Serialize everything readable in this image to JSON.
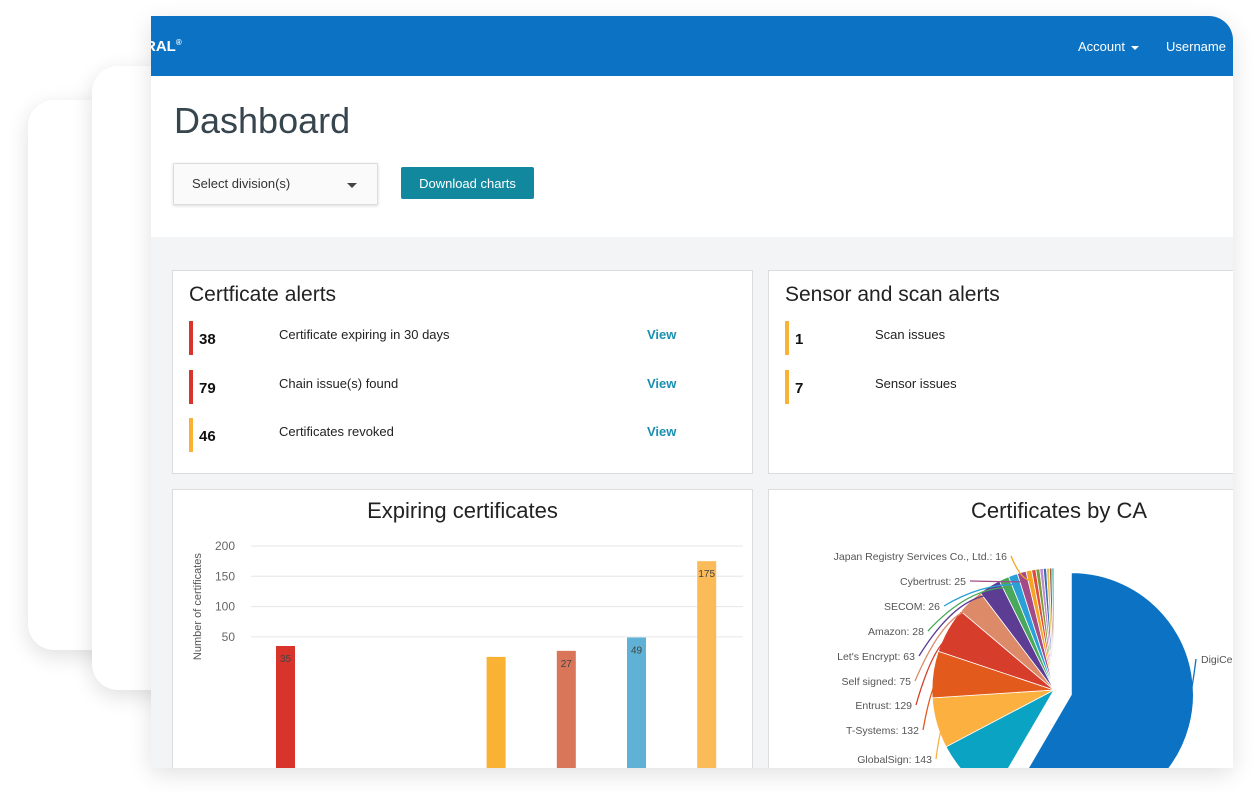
{
  "topbar": {
    "brand": "RAL",
    "brand_mark": "®",
    "account_label": "Account",
    "username_label": "Username"
  },
  "header": {
    "title": "Dashboard",
    "division_select": {
      "label": "Select division(s)"
    },
    "download_button": "Download charts"
  },
  "certificate_alerts": {
    "title": "Certficate alerts",
    "items": [
      {
        "count": "38",
        "text": "Certificate expiring in 30 days",
        "link": "View",
        "color": "#d9342b"
      },
      {
        "count": "79",
        "text": "Chain issue(s) found",
        "link": "View",
        "color": "#d9342b"
      },
      {
        "count": "46",
        "text": "Certificates revoked",
        "link": "View",
        "color": "#f9b233"
      }
    ]
  },
  "sensor_alerts": {
    "title": "Sensor and scan alerts",
    "items": [
      {
        "count": "1",
        "text": "Scan issues",
        "color": "#f9b233"
      },
      {
        "count": "7",
        "text": "Sensor issues",
        "color": "#f9b233"
      }
    ]
  },
  "chart_data": [
    {
      "type": "bar",
      "title": "Expiring certificates",
      "ylabel": "Number of certificates",
      "ylim": [
        0,
        200
      ],
      "yticks": [
        50,
        100,
        150,
        200
      ],
      "grid": true,
      "values": [
        35,
        0,
        0,
        17,
        27,
        49,
        175
      ],
      "labels": [
        "35",
        "",
        "",
        "",
        "27",
        "49",
        "175"
      ],
      "colors": [
        "#d9342b",
        "",
        "",
        "#f9b233",
        "#d97558",
        "#5fb2d6",
        "#fbbb59"
      ]
    },
    {
      "type": "pie",
      "title": "Certificates by CA",
      "slices": [
        {
          "label": "DigiCe",
          "value": 1250,
          "color": "#0b72c4"
        },
        {
          "label": "",
          "value": 190,
          "color": "#0aa3c3"
        },
        {
          "label": "GlobalSign: 143",
          "value": 143,
          "color": "#fbb040"
        },
        {
          "label": "T-Systems: 132",
          "value": 132,
          "color": "#e35a1d"
        },
        {
          "label": "Entrust: 129",
          "value": 129,
          "color": "#d73d2b"
        },
        {
          "label": "Self signed: 75",
          "value": 75,
          "color": "#dd8a69"
        },
        {
          "label": "Let's Encrypt: 63",
          "value": 63,
          "color": "#5d3c93"
        },
        {
          "label": "Amazon: 28",
          "value": 28,
          "color": "#4aa85c"
        },
        {
          "label": "SECOM: 26",
          "value": 26,
          "color": "#2b9fd8"
        },
        {
          "label": "Cybertrust: 25",
          "value": 25,
          "color": "#a44a88"
        },
        {
          "label": "Japan Registry Services Co., Ltd.: 16",
          "value": 16,
          "color": "#f4a623"
        },
        {
          "label": "",
          "value": 12,
          "color": "#e14b3b"
        },
        {
          "label": "",
          "value": 11,
          "color": "#7b9c3a"
        },
        {
          "label": "",
          "value": 10,
          "color": "#c38ad1"
        },
        {
          "label": "",
          "value": 9,
          "color": "#3a6fb5"
        },
        {
          "label": "",
          "value": 8,
          "color": "#e8c24a"
        },
        {
          "label": "",
          "value": 7,
          "color": "#9e5a4a"
        },
        {
          "label": "",
          "value": 6,
          "color": "#43b7a6"
        }
      ]
    }
  ]
}
